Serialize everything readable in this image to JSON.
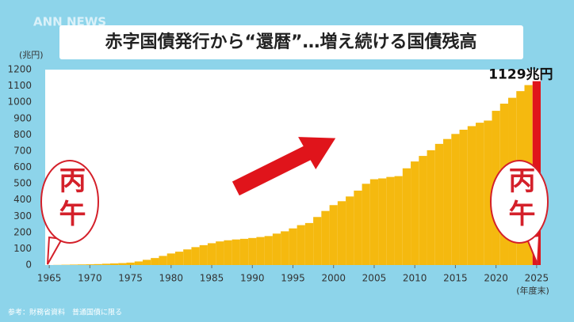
{
  "logo": "ANN NEWS",
  "source_note": "参考：財務省資料　普通国債に限る",
  "chart_data": {
    "type": "bar",
    "title": "赤字国債発行から“還暦”…増え続ける国債残高",
    "y_label": "(兆円)",
    "x_label": "(年度末)",
    "x": [
      1965,
      1966,
      1967,
      1968,
      1969,
      1970,
      1971,
      1972,
      1973,
      1974,
      1975,
      1976,
      1977,
      1978,
      1979,
      1980,
      1981,
      1982,
      1983,
      1984,
      1985,
      1986,
      1987,
      1988,
      1989,
      1990,
      1991,
      1992,
      1993,
      1994,
      1995,
      1996,
      1997,
      1998,
      1999,
      2000,
      2001,
      2002,
      2003,
      2004,
      2005,
      2006,
      2007,
      2008,
      2009,
      2010,
      2011,
      2012,
      2013,
      2014,
      2015,
      2016,
      2017,
      2018,
      2019,
      2020,
      2021,
      2022,
      2023,
      2024,
      2025
    ],
    "values": [
      0.2,
      0.9,
      1.9,
      2.8,
      3.7,
      4.5,
      5.8,
      8,
      10,
      12,
      15,
      22,
      32,
      43,
      56,
      71,
      82,
      96,
      110,
      122,
      134,
      145,
      152,
      157,
      161,
      166,
      172,
      178,
      193,
      207,
      225,
      245,
      258,
      295,
      332,
      368,
      392,
      421,
      457,
      499,
      527,
      532,
      541,
      546,
      594,
      636,
      670,
      705,
      744,
      774,
      805,
      831,
      853,
      874,
      887,
      947,
      991,
      1027,
      1068,
      1105,
      1129
    ],
    "color": "#f5b90f",
    "callout": {
      "index": 60,
      "text": "1129兆円",
      "color": "#e0141b"
    },
    "annotations": [
      {
        "text": "丙午"
      },
      {
        "text": "丙午"
      }
    ],
    "xlim": [
      1964.5,
      2025.5
    ],
    "xticks": [
      1965,
      1970,
      1975,
      1980,
      1985,
      1990,
      1995,
      2000,
      2005,
      2010,
      2015,
      2020,
      2025
    ],
    "ylim": [
      0,
      1200
    ],
    "yticks": [
      0,
      100,
      200,
      300,
      400,
      500,
      600,
      700,
      800,
      900,
      1000,
      1100,
      1200
    ],
    "grid": false
  }
}
